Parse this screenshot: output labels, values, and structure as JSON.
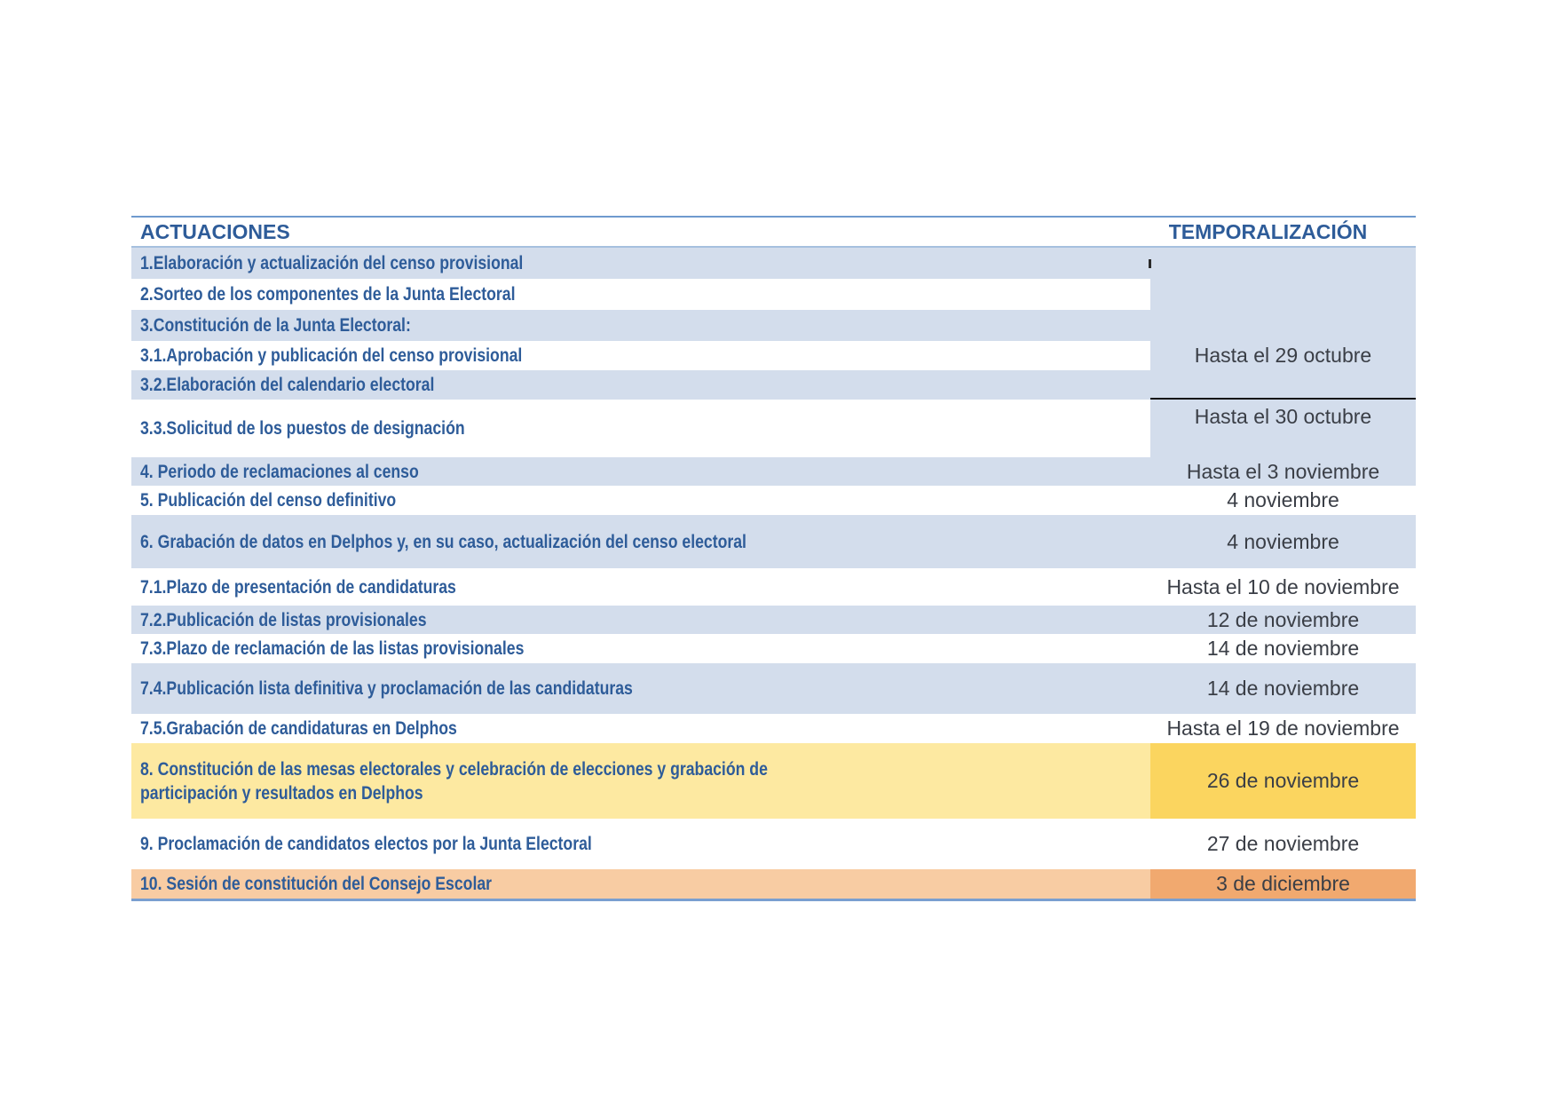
{
  "table": {
    "headers": {
      "left": "ACTUACIONES",
      "right": "TEMPORALIZACIÓN"
    },
    "merged_dates": {
      "rows_1_to_3_2": "Hasta el 29 octubre"
    },
    "rows": [
      {
        "label": "1.Elaboración y actualización del censo provisional",
        "date": ""
      },
      {
        "label": "2.Sorteo de los componentes de la Junta Electoral",
        "date": ""
      },
      {
        "label": "3.Constitución de la Junta Electoral:",
        "date": ""
      },
      {
        "label": "3.1.Aprobación y publicación del censo provisional",
        "date": ""
      },
      {
        "label": "3.2.Elaboración del calendario electoral",
        "date": ""
      },
      {
        "label": "3.3.Solicitud de los puestos de designación",
        "date": "Hasta el 30 octubre"
      },
      {
        "label": "4. Periodo de reclamaciones al censo",
        "date": "Hasta el 3 noviembre"
      },
      {
        "label": "5. Publicación del censo definitivo",
        "date": "4 noviembre"
      },
      {
        "label": "6. Grabación de datos en Delphos y, en su caso, actualización del censo electoral",
        "date": "4 noviembre"
      },
      {
        "label": "7.1.Plazo de presentación de candidaturas",
        "date": "Hasta el 10 de noviembre"
      },
      {
        "label": "7.2.Publicación de listas provisionales",
        "date": "12 de noviembre"
      },
      {
        "label": "7.3.Plazo de reclamación de las listas provisionales",
        "date": "14 de noviembre"
      },
      {
        "label": "7.4.Publicación lista definitiva y proclamación de las candidaturas",
        "date": "14 de noviembre"
      },
      {
        "label": "7.5.Grabación de candidaturas en Delphos",
        "date": "Hasta el 19 de noviembre"
      },
      {
        "label": "8. Constitución de las mesas electorales y celebración de elecciones y grabación de\nparticipación y resultados en Delphos",
        "date": "26 de noviembre"
      },
      {
        "label": "9. Proclamación de candidatos electos por la Junta Electoral",
        "date": "27 de noviembre"
      },
      {
        "label": "10. Sesión de constitución del Consejo Escolar",
        "date": "3 de diciembre"
      }
    ],
    "colors": {
      "row_blue": "#d3ddec",
      "row_white": "#ffffff",
      "row8_left_yellow": "#fde9a1",
      "row8_right_yellow": "#fbd55f",
      "row10_left_orange": "#f8cca3",
      "row10_right_orange": "#f1a96f",
      "label_text_blue": "#2e5c99",
      "date_text": "#3a3e46",
      "border_blue": "#7a9fd0",
      "separator_black": "#141414"
    }
  }
}
